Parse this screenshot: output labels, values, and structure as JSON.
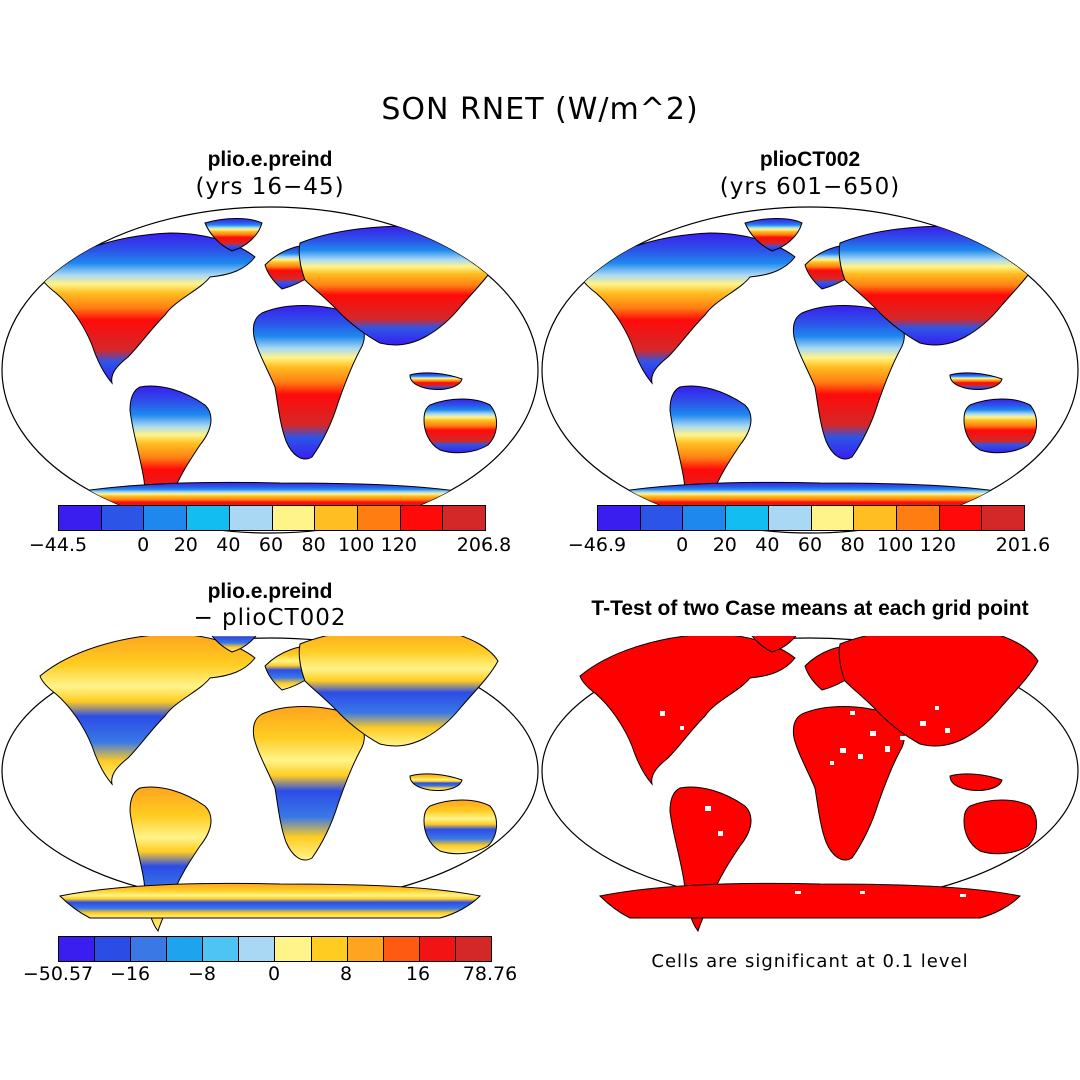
{
  "main_title": "SON RNET (W/m^2)",
  "panels": [
    {
      "title": "plio.e.preind",
      "subtitle": "(yrs 16−45)"
    },
    {
      "title": "plioCT002",
      "subtitle": "(yrs 601−650)"
    },
    {
      "title": "plio.e.preind",
      "subtitle": "− plioCT002"
    },
    {
      "title": "T-Test of two Case means at each grid point",
      "subtitle": ""
    }
  ],
  "colorbars": {
    "a": {
      "colors": [
        "#3a1ef0",
        "#2c55e8",
        "#1e88ee",
        "#12bdf2",
        "#a9d8f4",
        "#fff48a",
        "#ffbe22",
        "#ff7e12",
        "#ff0a0a",
        "#d42828"
      ],
      "labels": [
        "−44.5",
        "0",
        "20",
        "40",
        "60",
        "80",
        "100",
        "120",
        "206.8"
      ]
    },
    "b": {
      "colors": [
        "#3a1ef0",
        "#2c55e8",
        "#1e88ee",
        "#12bdf2",
        "#a9d8f4",
        "#fff48a",
        "#ffbe22",
        "#ff7e12",
        "#ff0a0a",
        "#d42828"
      ],
      "labels": [
        "−46.9",
        "0",
        "20",
        "40",
        "60",
        "80",
        "100",
        "120",
        "201.6"
      ]
    },
    "c": {
      "colors": [
        "#3a1ef0",
        "#2c4ce6",
        "#3a78e6",
        "#1ea4ee",
        "#4ec4f4",
        "#a9d8f4",
        "#fff48a",
        "#ffcc22",
        "#ffa41e",
        "#ff5a12",
        "#f21414",
        "#d42828"
      ],
      "labels": [
        "−50.57",
        "−16",
        "−8",
        "0",
        "8",
        "16",
        "78.76"
      ]
    }
  },
  "significance_note": "Cells are significant at 0.1 level",
  "significance_color": "#ff0000"
}
